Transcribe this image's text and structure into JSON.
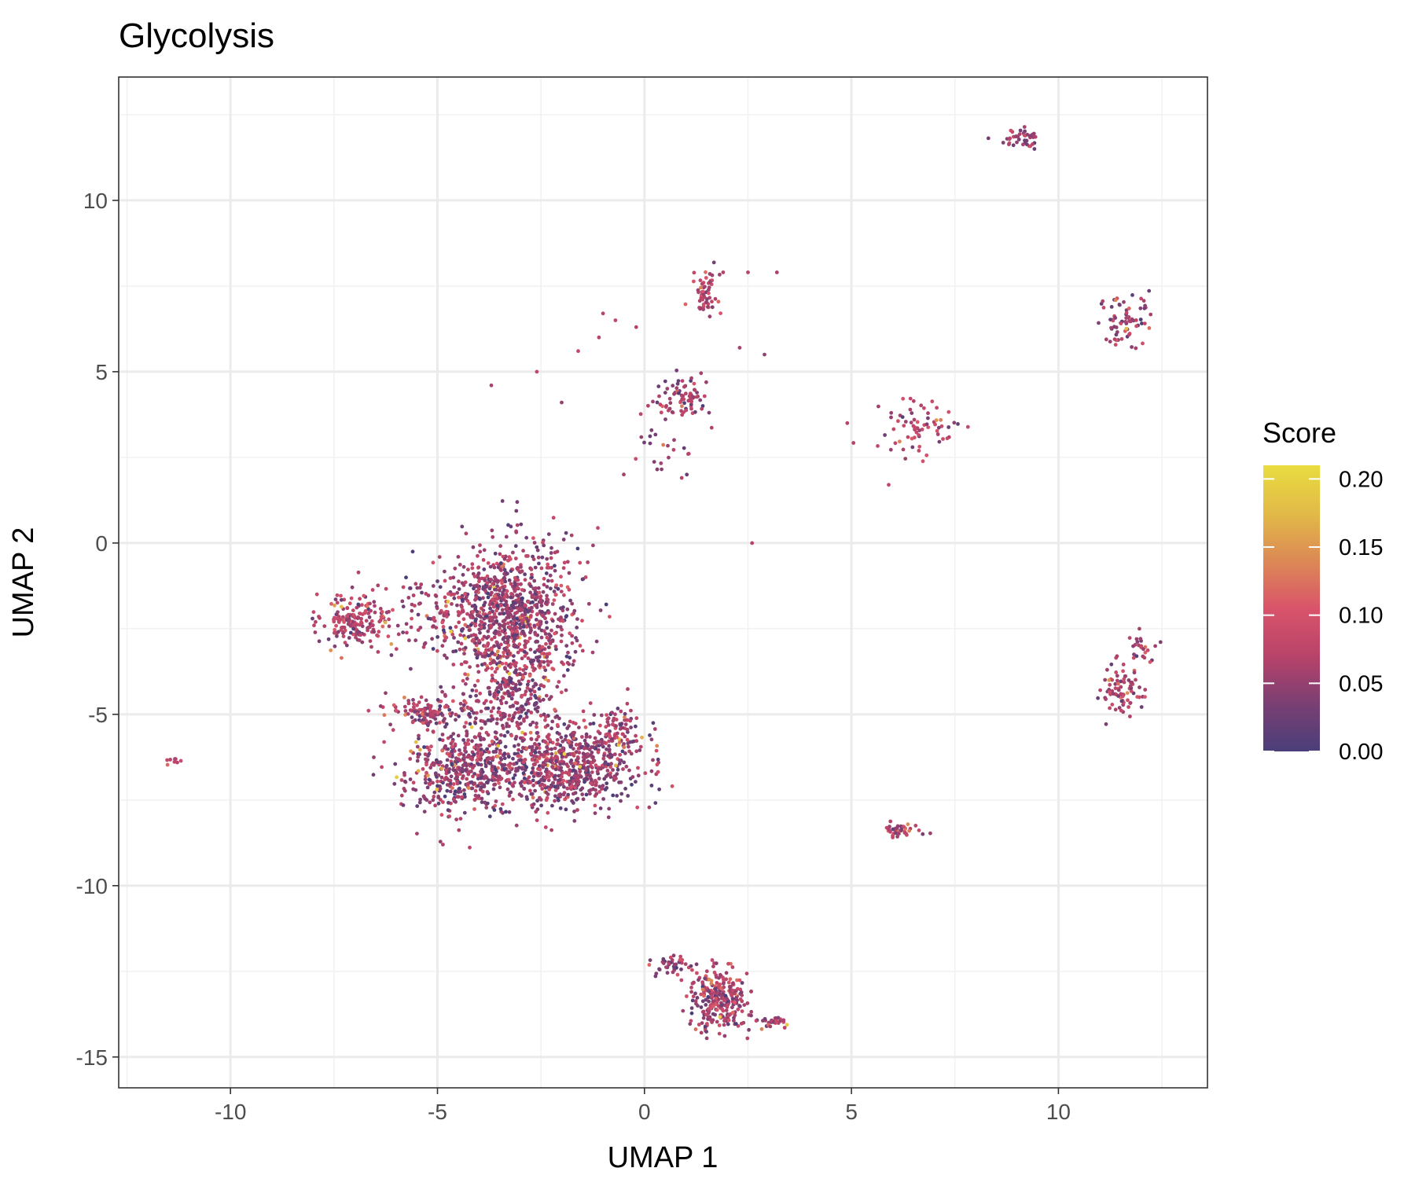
{
  "chart_data": {
    "type": "scatter",
    "title": "Glycolysis",
    "xlabel": "UMAP 1",
    "ylabel": "UMAP 2",
    "xlim": [
      -12.7,
      13.6
    ],
    "ylim": [
      -15.9,
      13.6
    ],
    "x_ticks": [
      -10,
      -5,
      0,
      5,
      10
    ],
    "x_tick_labels": [
      "-10",
      "-5",
      "0",
      "5",
      "10"
    ],
    "y_ticks": [
      -15,
      -10,
      -5,
      0,
      5,
      10
    ],
    "y_tick_labels": [
      "-15",
      "-10",
      "-5",
      "0",
      "5",
      "10"
    ],
    "grid": true,
    "legend": {
      "title": "Score",
      "position": "right",
      "ticks": [
        0.0,
        0.05,
        0.1,
        0.15,
        0.2
      ],
      "tick_labels": [
        "0.00",
        "0.05",
        "0.10",
        "0.15",
        "0.20"
      ],
      "range": [
        0.0,
        0.21
      ],
      "colors": [
        "#4a3f7a",
        "#7a3f73",
        "#b8436a",
        "#d9546a",
        "#dc8955",
        "#e2ba48",
        "#e8dc40"
      ]
    },
    "clusters": [
      {
        "cx": -3.1,
        "cy": -2.3,
        "sx": 0.9,
        "sy": 1.5,
        "n": 900,
        "score": 0.055
      },
      {
        "cx": -4.3,
        "cy": -2.0,
        "sx": 1.2,
        "sy": 0.9,
        "n": 250,
        "score": 0.05
      },
      {
        "cx": -7.0,
        "cy": -2.3,
        "sx": 0.55,
        "sy": 0.45,
        "n": 180,
        "score": 0.07
      },
      {
        "cx": -5.2,
        "cy": -4.9,
        "sx": 0.7,
        "sy": 0.25,
        "n": 120,
        "score": 0.06
      },
      {
        "cx": -4.3,
        "cy": -6.6,
        "sx": 0.9,
        "sy": 0.8,
        "n": 450,
        "score": 0.05
      },
      {
        "cx": -1.9,
        "cy": -6.5,
        "sx": 1.2,
        "sy": 0.8,
        "n": 750,
        "score": 0.055
      },
      {
        "cx": -0.6,
        "cy": -5.4,
        "sx": 0.3,
        "sy": 0.5,
        "n": 60,
        "score": 0.06
      },
      {
        "cx": -3.2,
        "cy": -4.6,
        "sx": 0.6,
        "sy": 0.6,
        "n": 150,
        "score": 0.05
      },
      {
        "cx": -11.4,
        "cy": -6.35,
        "sx": 0.12,
        "sy": 0.06,
        "n": 8,
        "score": 0.07
      },
      {
        "cx": 1.8,
        "cy": -13.3,
        "sx": 0.45,
        "sy": 0.55,
        "n": 280,
        "score": 0.06
      },
      {
        "cx": 0.6,
        "cy": -12.3,
        "sx": 0.3,
        "sy": 0.2,
        "n": 40,
        "score": 0.05
      },
      {
        "cx": 3.1,
        "cy": -14.0,
        "sx": 0.25,
        "sy": 0.12,
        "n": 30,
        "score": 0.06
      },
      {
        "cx": 6.2,
        "cy": -8.4,
        "sx": 0.25,
        "sy": 0.15,
        "n": 40,
        "score": 0.08
      },
      {
        "cx": 1.5,
        "cy": 7.3,
        "sx": 0.2,
        "sy": 0.45,
        "n": 55,
        "score": 0.07
      },
      {
        "cx": 0.8,
        "cy": 4.2,
        "sx": 0.5,
        "sy": 0.4,
        "n": 80,
        "score": 0.06
      },
      {
        "cx": 0.4,
        "cy": 2.8,
        "sx": 0.5,
        "sy": 0.5,
        "n": 20,
        "score": 0.05
      },
      {
        "cx": 9.1,
        "cy": 11.8,
        "sx": 0.4,
        "sy": 0.18,
        "n": 40,
        "score": 0.06
      },
      {
        "cx": 6.6,
        "cy": 3.4,
        "sx": 0.7,
        "sy": 0.5,
        "n": 70,
        "score": 0.07
      },
      {
        "cx": 11.6,
        "cy": 6.5,
        "sx": 0.35,
        "sy": 0.55,
        "n": 70,
        "score": 0.06
      },
      {
        "cx": 11.5,
        "cy": -4.3,
        "sx": 0.3,
        "sy": 0.45,
        "n": 80,
        "score": 0.06
      },
      {
        "cx": 12.0,
        "cy": -3.1,
        "sx": 0.3,
        "sy": 0.25,
        "n": 25,
        "score": 0.06
      }
    ],
    "outliers": [
      [
        -3.7,
        4.6,
        0.06
      ],
      [
        -2.6,
        5.0,
        0.08
      ],
      [
        -2.0,
        4.1,
        0.05
      ],
      [
        -1.6,
        5.6,
        0.08
      ],
      [
        -1.0,
        6.7,
        0.07
      ],
      [
        -1.1,
        6.0,
        0.07
      ],
      [
        -0.7,
        6.5,
        0.08
      ],
      [
        -0.2,
        6.3,
        0.07
      ],
      [
        1.9,
        7.9,
        0.07
      ],
      [
        2.5,
        7.9,
        0.07
      ],
      [
        3.2,
        7.9,
        0.06
      ],
      [
        2.9,
        5.5,
        0.05
      ],
      [
        2.3,
        5.7,
        0.06
      ],
      [
        4.9,
        3.5,
        0.07
      ],
      [
        2.6,
        0.0,
        0.07
      ],
      [
        -0.5,
        2.0,
        0.06
      ],
      [
        0.9,
        1.9,
        0.07
      ],
      [
        5.9,
        1.7,
        0.08
      ]
    ]
  }
}
